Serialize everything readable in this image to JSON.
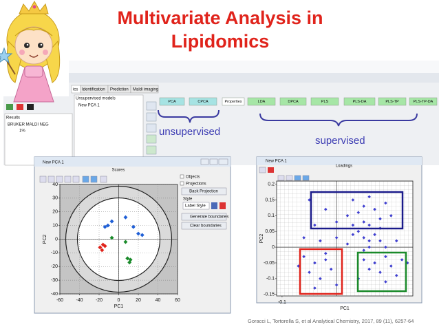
{
  "title_lines": [
    "Multivariate Analysis in",
    "Lipidomics"
  ],
  "software": {
    "tabs": [
      "ics",
      "Identification",
      "Prediction",
      "Maldi imaging"
    ],
    "models_header": "Unsupervised models",
    "model_item": "New PCA 1",
    "results_header": "Results",
    "results_item": "BRUKER MALDI NEG",
    "results_value": "1%",
    "buttons": [
      {
        "label": "PCA",
        "color": "#a6e3e3"
      },
      {
        "label": "CPCA",
        "color": "#a6e3e3"
      },
      {
        "label": "Properties",
        "color": "#ffffff"
      },
      {
        "label": "LDA",
        "color": "#a6e6a6"
      },
      {
        "label": "DPCA",
        "color": "#a6e6a6"
      },
      {
        "label": "PLS",
        "color": "#a6e6a6"
      },
      {
        "label": "PLS-DA",
        "color": "#a6e6a6"
      },
      {
        "label": "PLS-TP",
        "color": "#a6e6a6"
      },
      {
        "label": "PLS-TP-DA",
        "color": "#a6e6a6"
      }
    ]
  },
  "annotations": {
    "unsupervised": "unsupervised",
    "supervised": "supervised"
  },
  "scores_window": {
    "window_title": "New PCA 1",
    "options": [
      "Objects",
      "Projections"
    ],
    "back_projection": "Back Projection",
    "style_label": "Style",
    "label_style": "Label Style",
    "generate": "Generate boundaries",
    "clear": "Clear boundaries"
  },
  "loadings_window": {
    "window_title": "New PCA 1"
  },
  "chart_data": [
    {
      "type": "scatter",
      "title": "Scores",
      "xlabel": "PC1",
      "ylabel": "PC2",
      "xlim": [
        -60,
        60
      ],
      "ylim": [
        -40,
        40
      ],
      "xticks": [
        -60,
        -40,
        -20,
        0,
        20,
        40,
        60
      ],
      "yticks": [
        -40,
        -30,
        -20,
        -10,
        0,
        10,
        20,
        30,
        40
      ],
      "grid": true,
      "series": [
        {
          "color": "#1f5fd6",
          "x": [
            -14,
            -11,
            -7,
            7,
            15,
            20,
            24
          ],
          "values": [
            9,
            10,
            13,
            16,
            9,
            4,
            3
          ]
        },
        {
          "color": "#1a8a2a",
          "x": [
            -7,
            7,
            9,
            11,
            12
          ],
          "values": [
            1,
            -2,
            -14,
            -17,
            -15
          ]
        },
        {
          "color": "#e0231b",
          "x": [
            -19,
            -16,
            -14,
            -17
          ],
          "values": [
            -6,
            -4,
            -5,
            -8
          ]
        }
      ]
    },
    {
      "type": "scatter",
      "title": "Loadings",
      "xlabel": "PC1",
      "ylabel": "PC2",
      "xlim": [
        -0.11,
        0.14
      ],
      "ylim": [
        -0.155,
        0.21
      ],
      "xticks": [
        -0.1
      ],
      "yticks": [
        0.2,
        0.15,
        0.1,
        0.05,
        0,
        -0.05,
        -0.1,
        -0.15
      ],
      "grid": false,
      "series": [
        {
          "color": "#4040d0",
          "x": [
            0.03,
            0.05,
            0.06,
            0.04,
            0.07,
            0.08,
            0.02,
            -0.02,
            -0.04,
            0.0,
            0.09,
            0.05,
            0.06,
            0.1,
            0.03,
            -0.05,
            0.08,
            0.04,
            0.05,
            0.06,
            0.03,
            0.07,
            0.02,
            0.0,
            -0.03,
            0.06,
            0.05,
            0.08,
            0.09,
            -0.06,
            0.11,
            -0.06,
            -0.04,
            -0.02,
            -0.05,
            -0.03,
            -0.01,
            -0.07,
            0.0,
            -0.04,
            -0.02,
            0.05,
            0.07,
            0.09,
            0.1,
            0.12,
            0.08,
            0.06,
            0.11,
            0.04,
            0.09,
            0.13
          ],
          "values": [
            0.15,
            0.13,
            0.16,
            0.11,
            0.12,
            0.09,
            0.1,
            0.12,
            0.07,
            0.08,
            0.14,
            0.08,
            0.07,
            0.1,
            0.07,
            0.15,
            0.06,
            0.05,
            0.03,
            0.02,
            0.04,
            0.04,
            0.01,
            0.03,
            0.02,
            0.0,
            -0.01,
            0.02,
            0.0,
            0.03,
            0.02,
            -0.03,
            -0.05,
            -0.04,
            -0.08,
            -0.1,
            -0.07,
            -0.06,
            -0.12,
            -0.13,
            -0.02,
            -0.04,
            -0.05,
            -0.03,
            -0.06,
            -0.04,
            -0.08,
            -0.07,
            -0.09,
            -0.1,
            -0.11,
            -0.05
          ]
        }
      ]
    }
  ],
  "citation": "Goracci L, Tortorella S, et al Analytical Chemistry, 2017, 89 (11), 6257-64"
}
